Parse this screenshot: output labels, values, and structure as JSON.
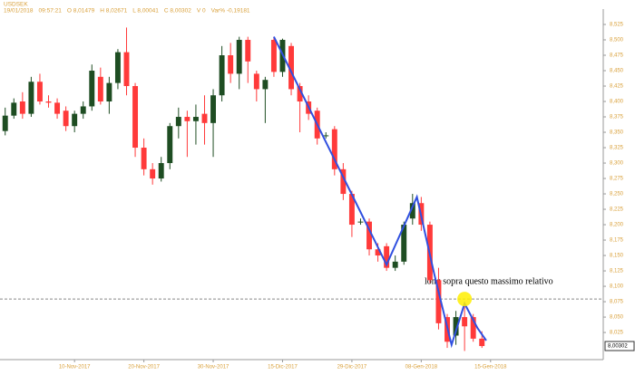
{
  "chart_data": {
    "type": "candlestick",
    "symbol": "USDSEK",
    "header": [
      "19/01/2018",
      "09:57:21",
      "O 8,01479",
      "H 8,02671",
      "L 8,00041",
      "C 8,00302",
      "V 0",
      "Var% -0,19181"
    ],
    "open": [
      8.352,
      8.377,
      8.4,
      8.38,
      8.432,
      8.4,
      8.398,
      8.385,
      8.36,
      8.38,
      8.392,
      8.44,
      8.4,
      8.43,
      8.48,
      8.425,
      8.325,
      8.29,
      8.275,
      8.3,
      8.36,
      8.375,
      8.368,
      8.38,
      8.365,
      8.41,
      8.475,
      8.445,
      8.5,
      8.445,
      8.42,
      8.5,
      8.448,
      8.49,
      8.425,
      8.4,
      8.385,
      8.345,
      8.355,
      8.29,
      8.25,
      8.205,
      8.205,
      8.16,
      8.165,
      8.13,
      8.14,
      8.21,
      8.235,
      8.2,
      8.11,
      8.05,
      8.02,
      8.05,
      8.05,
      8.015
    ],
    "high": [
      8.39,
      8.405,
      8.415,
      8.44,
      8.445,
      8.41,
      8.405,
      8.392,
      8.385,
      8.4,
      8.46,
      8.455,
      8.44,
      8.485,
      8.52,
      8.43,
      8.34,
      8.3,
      8.31,
      8.365,
      8.39,
      8.385,
      8.395,
      8.41,
      8.42,
      8.49,
      8.495,
      8.505,
      8.505,
      8.45,
      8.44,
      8.505,
      8.502,
      8.495,
      8.43,
      8.41,
      8.39,
      8.35,
      8.36,
      8.3,
      8.255,
      8.21,
      8.21,
      8.17,
      8.17,
      8.15,
      8.205,
      8.25,
      8.245,
      8.205,
      8.13,
      8.055,
      8.06,
      8.07,
      8.055,
      8.027
    ],
    "low": [
      8.345,
      8.372,
      8.372,
      8.375,
      8.395,
      8.39,
      8.372,
      8.352,
      8.35,
      8.372,
      8.385,
      8.395,
      8.38,
      8.42,
      8.41,
      8.31,
      8.28,
      8.265,
      8.27,
      8.29,
      8.34,
      8.31,
      8.33,
      8.33,
      8.31,
      8.4,
      8.43,
      8.42,
      8.43,
      8.4,
      8.365,
      8.44,
      8.44,
      8.41,
      8.35,
      8.37,
      8.33,
      8.34,
      8.28,
      8.24,
      8.18,
      8.2,
      8.15,
      8.14,
      8.125,
      8.125,
      8.135,
      8.2,
      8.19,
      8.105,
      8.03,
      8.0,
      8.005,
      7.995,
      8.01,
      8.0
    ],
    "close": [
      8.377,
      8.398,
      8.38,
      8.432,
      8.4,
      8.398,
      8.38,
      8.36,
      8.38,
      8.392,
      8.45,
      8.4,
      8.43,
      8.48,
      8.425,
      8.325,
      8.29,
      8.275,
      8.3,
      8.36,
      8.375,
      8.368,
      8.375,
      8.365,
      8.41,
      8.475,
      8.445,
      8.5,
      8.465,
      8.42,
      8.435,
      8.448,
      8.5,
      8.42,
      8.4,
      8.38,
      8.34,
      8.345,
      8.29,
      8.25,
      8.2,
      8.205,
      8.16,
      8.15,
      8.13,
      8.14,
      8.2,
      8.235,
      8.2,
      8.11,
      8.04,
      8.01,
      8.05,
      8.035,
      8.015,
      8.003
    ],
    "up_color": "#1e4d22",
    "down_color": "#ff3a3a",
    "xlim": [
      -0.6,
      69
    ],
    "xticks": [
      {
        "value": 8,
        "label": "10-Nov-2017"
      },
      {
        "value": 16,
        "label": "20-Nov-2017"
      },
      {
        "value": 24,
        "label": "30-Nov-2017"
      },
      {
        "value": 32,
        "label": "15-Dic-2017"
      },
      {
        "value": 40,
        "label": "29-Dic-2017"
      },
      {
        "value": 48,
        "label": "08-Gen-2018"
      },
      {
        "value": 56,
        "label": "15-Gen-2018"
      }
    ],
    "ylim": [
      7.981,
      8.55
    ],
    "yticks": [
      {
        "value": 8.525,
        "label": "8,525"
      },
      {
        "value": 8.5,
        "label": "8,500"
      },
      {
        "value": 8.475,
        "label": "8,475"
      },
      {
        "value": 8.45,
        "label": "8,450"
      },
      {
        "value": 8.425,
        "label": "8,425"
      },
      {
        "value": 8.4,
        "label": "8,400"
      },
      {
        "value": 8.375,
        "label": "8,375"
      },
      {
        "value": 8.35,
        "label": "8,350"
      },
      {
        "value": 8.325,
        "label": "8,325"
      },
      {
        "value": 8.3,
        "label": "8,300"
      },
      {
        "value": 8.275,
        "label": "8,275"
      },
      {
        "value": 8.25,
        "label": "8,250"
      },
      {
        "value": 8.225,
        "label": "8,225"
      },
      {
        "value": 8.2,
        "label": "8,200"
      },
      {
        "value": 8.175,
        "label": "8,175"
      },
      {
        "value": 8.15,
        "label": "8,150"
      },
      {
        "value": 8.125,
        "label": "8,125"
      },
      {
        "value": 8.1,
        "label": "8,100"
      },
      {
        "value": 8.075,
        "label": "8,075"
      },
      {
        "value": 8.05,
        "label": "8,050"
      },
      {
        "value": 8.025,
        "label": "8,025"
      }
    ],
    "last_price": {
      "value": 8.00302,
      "label": "8,00302"
    },
    "reference_line": 8.0794,
    "trendline": {
      "color": "#3050e0",
      "x": [
        31,
        44,
        47.5,
        49.5,
        51.5,
        53,
        54.5,
        55.5
      ],
      "values": [
        8.505,
        8.135,
        8.245,
        8.12,
        8.005,
        8.072,
        8.032,
        8.012
      ]
    },
    "annotation": "long sopra questo massimo relativo",
    "grid": false
  }
}
